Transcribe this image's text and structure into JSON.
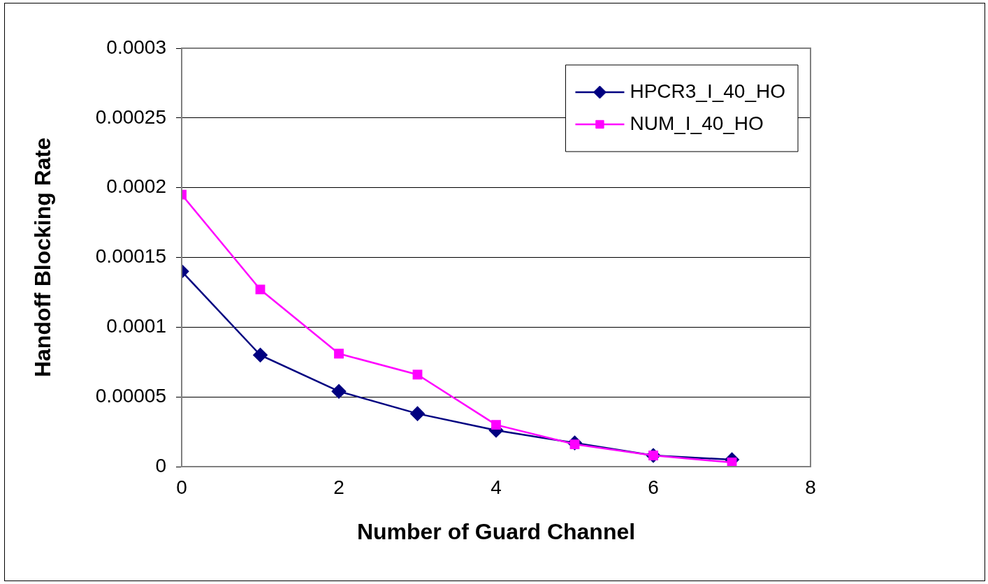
{
  "chart_data": {
    "type": "line",
    "xlabel": "Number of Guard Channel",
    "ylabel": "Handoff Blocking Rate",
    "x": [
      0,
      1,
      2,
      3,
      4,
      5,
      6,
      7
    ],
    "series": [
      {
        "name": "HPCR3_I_40_HO",
        "color": "#000080",
        "marker": "diamond",
        "values": [
          0.00014,
          8e-05,
          5.4e-05,
          3.8e-05,
          2.6e-05,
          1.7e-05,
          8e-06,
          5e-06
        ]
      },
      {
        "name": "NUM_I_40_HO",
        "color": "#ff00ff",
        "marker": "square",
        "values": [
          0.000195,
          0.000127,
          8.1e-05,
          6.6e-05,
          3e-05,
          1.6e-05,
          8e-06,
          3e-06
        ]
      }
    ],
    "xlim": [
      0,
      8
    ],
    "xticks": [
      0,
      2,
      4,
      6,
      8
    ],
    "ylim": [
      0,
      0.0003
    ],
    "yticks": [
      0,
      {
        "value": 5e-05,
        "label": "0.00005"
      },
      0.0001,
      0.00015,
      0.0002,
      0.00025,
      0.0003
    ],
    "grid": "y",
    "legend": "top right",
    "line_style": "solid"
  }
}
